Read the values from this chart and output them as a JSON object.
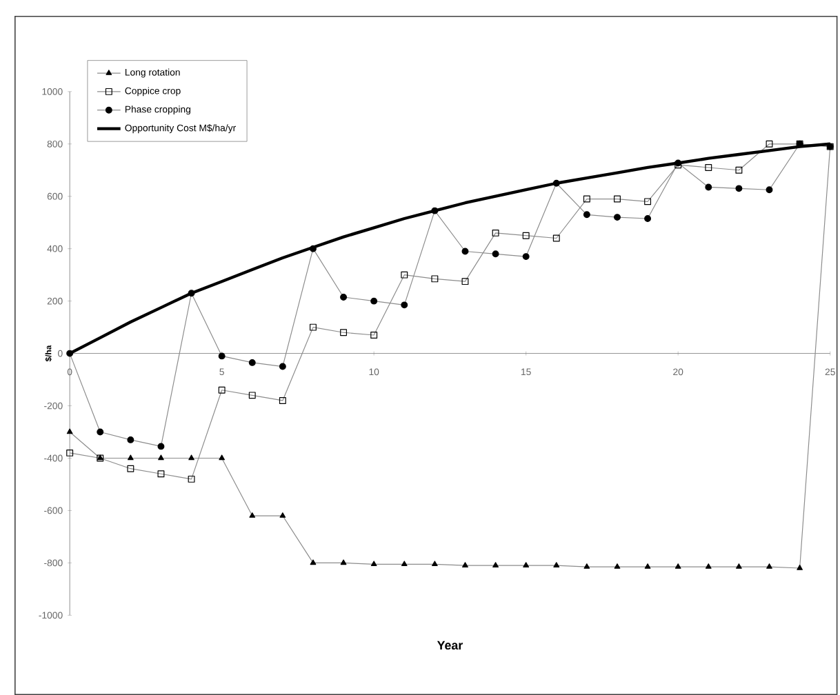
{
  "chart_data": {
    "type": "line",
    "xlabel": "Year",
    "ylabel": "$/ha",
    "x": [
      0,
      1,
      2,
      3,
      4,
      5,
      6,
      7,
      8,
      9,
      10,
      11,
      12,
      13,
      14,
      15,
      16,
      17,
      18,
      19,
      20,
      21,
      22,
      23,
      24,
      25
    ],
    "series": [
      {
        "name": "Long rotation",
        "color": "#000000",
        "marker": "triangle",
        "values": [
          -300,
          -400,
          -400,
          -400,
          -400,
          -400,
          -620,
          -620,
          -800,
          -800,
          -805,
          -805,
          -805,
          -810,
          -810,
          -810,
          -810,
          -815,
          -815,
          -815,
          -815,
          -815,
          -815,
          -815,
          -820,
          790
        ]
      },
      {
        "name": "Coppice crop",
        "color": "#000000",
        "marker": "square",
        "values": [
          -380,
          -400,
          -440,
          -460,
          -480,
          -140,
          -160,
          -180,
          100,
          80,
          70,
          300,
          285,
          275,
          460,
          450,
          440,
          590,
          590,
          580,
          720,
          710,
          700,
          800,
          800,
          790
        ]
      },
      {
        "name": "Phase cropping",
        "color": "#000000",
        "marker": "circle",
        "values": [
          0,
          -300,
          -330,
          -355,
          230,
          -10,
          -35,
          -50,
          400,
          215,
          200,
          185,
          545,
          390,
          380,
          370,
          650,
          530,
          520,
          515,
          727,
          635,
          630,
          625,
          800,
          790
        ]
      },
      {
        "name": "Opportunity Cost M$/ha/yr",
        "color": "#000000",
        "marker": "none",
        "values": [
          0,
          60,
          120,
          175,
          230,
          275,
          320,
          365,
          405,
          445,
          480,
          515,
          545,
          575,
          600,
          625,
          650,
          670,
          690,
          710,
          727,
          745,
          760,
          775,
          790,
          800
        ]
      }
    ],
    "xlim": [
      0,
      25
    ],
    "xticks": [
      0,
      5,
      10,
      15,
      20,
      25
    ],
    "ylim": [
      -1000,
      1000
    ],
    "yticks": [
      -1000,
      -800,
      -600,
      -400,
      -200,
      0,
      200,
      400,
      600,
      800,
      1000
    ],
    "grid": false,
    "legend": "top left",
    "line_style": "solid"
  }
}
